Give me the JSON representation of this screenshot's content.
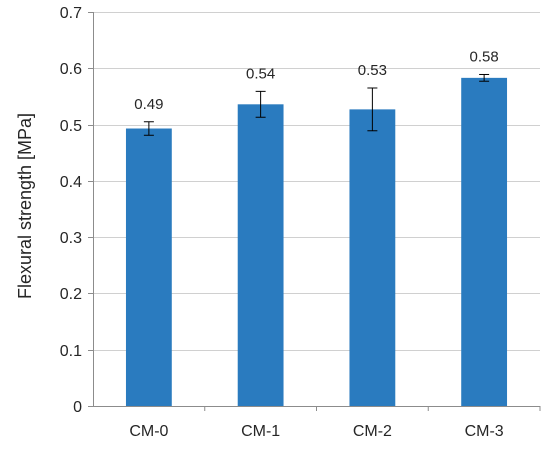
{
  "chart_data": {
    "type": "bar",
    "categories": [
      "CM-0",
      "CM-1",
      "CM-2",
      "CM-3"
    ],
    "values": [
      0.493,
      0.536,
      0.527,
      0.583
    ],
    "data_labels": [
      "0.49",
      "0.54",
      "0.53",
      "0.58"
    ],
    "error_bars": [
      0.012,
      0.023,
      0.038,
      0.006
    ],
    "title": "",
    "xlabel": "",
    "ylabel": "Flexural strength [MPa]",
    "ylim": [
      0,
      0.7
    ],
    "yticks": [
      0,
      0.1,
      0.2,
      0.3,
      0.4,
      0.5,
      0.6,
      0.7
    ],
    "ytick_labels": [
      "0",
      "0.1",
      "0.2",
      "0.3",
      "0.4",
      "0.5",
      "0.6",
      "0.7"
    ],
    "grid": "horizontal major",
    "legend": "none",
    "colors": {
      "bar": "#2a7bbf",
      "grid": "#d0d0d0",
      "axis": "#8c8c8c",
      "error": "#000000"
    }
  }
}
